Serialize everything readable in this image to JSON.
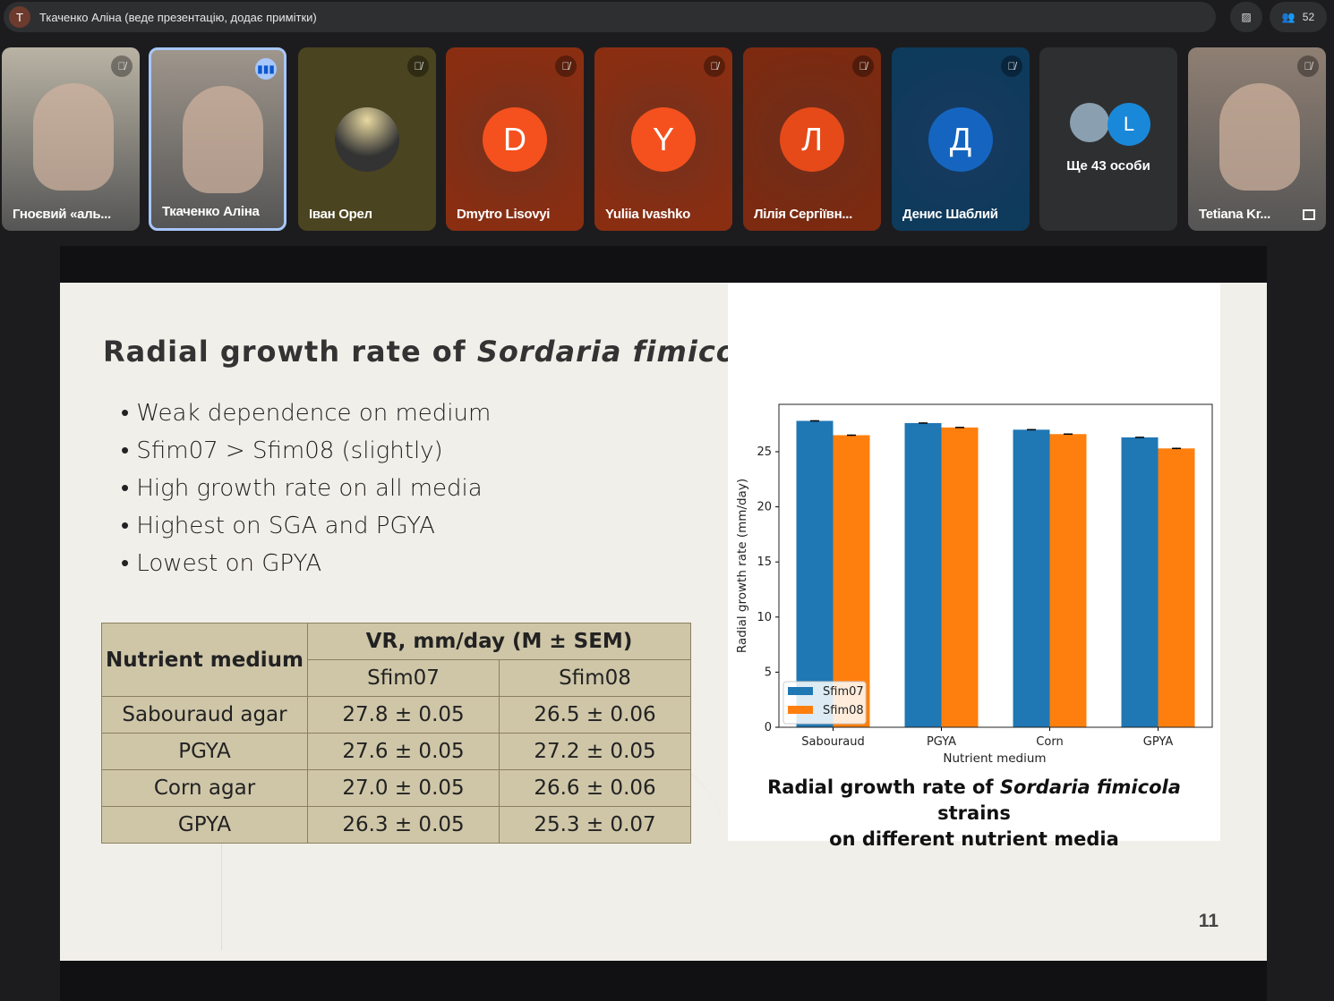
{
  "topbar": {
    "presenter_initial": "T",
    "presenter_label": "Ткаченко Аліна (веде презентацію, додає примітки)",
    "participant_count": "52"
  },
  "tiles": [
    {
      "name": "Гноєвий «аль...",
      "type": "video",
      "bg": "#b9b3a4"
    },
    {
      "name": "Ткаченко Аліна",
      "type": "video",
      "bg": "#9f968c",
      "speaking": true
    },
    {
      "name": "Іван Орел",
      "type": "photo",
      "bg": "#4a4420"
    },
    {
      "name": "Dmytro Lisovyi",
      "initial": "D",
      "bg": "#8a2e12",
      "avatar": "#f4511e"
    },
    {
      "name": "Yuliia Ivashko",
      "initial": "Y",
      "bg": "#8a2e12",
      "avatar": "#f4511e"
    },
    {
      "name": "Лілія Сергіївн...",
      "initial": "Л",
      "bg": "#7c2a10",
      "avatar": "#e64a19"
    },
    {
      "name": "Денис Шаблий",
      "initial": "Д",
      "bg": "#0e3a5c",
      "avatar": "#1565c0"
    },
    {
      "name": "Ще 43 особи",
      "type": "more",
      "bg": "#2e2f31",
      "avatar_initial": "L"
    },
    {
      "name": "Tetiana Kr...",
      "type": "video",
      "bg": "#8f7f73"
    }
  ],
  "slide": {
    "title_plain": "Radial growth rate of ",
    "title_italic": "Sordaria fimicola",
    "bullets": [
      "Weak dependence on medium",
      "Sfim07 > Sfim08 (slightly)",
      "High growth rate on all media",
      "Highest on SGA and PGYA",
      "Lowest on GPYA"
    ],
    "table": {
      "col0": "Nutrient medium",
      "group": "VR, mm/day (M ± SEM)",
      "cols": [
        "Sfim07",
        "Sfim08"
      ],
      "rows": [
        [
          "Sabouraud agar",
          "27.8 ± 0.05",
          "26.5 ± 0.06"
        ],
        [
          "PGYA",
          "27.6 ± 0.05",
          "27.2 ± 0.05"
        ],
        [
          "Corn agar",
          "27.0 ± 0.05",
          "26.6 ± 0.06"
        ],
        [
          "GPYA",
          "26.3 ± 0.05",
          "25.3 ± 0.07"
        ]
      ]
    },
    "caption_1": "Radial growth rate of ",
    "caption_italic": "Sordaria fimicola",
    "caption_2": " strains",
    "caption_line2": "on different nutrient media",
    "page_number": "11"
  },
  "chart_data": {
    "type": "bar",
    "categories": [
      "Sabouraud",
      "PGYA",
      "Corn",
      "GPYA"
    ],
    "series": [
      {
        "name": "Sfim07",
        "color": "#1f77b4",
        "values": [
          27.8,
          27.6,
          27.0,
          26.3
        ],
        "errors": [
          0.05,
          0.05,
          0.05,
          0.05
        ]
      },
      {
        "name": "Sfim08",
        "color": "#ff7f0e",
        "values": [
          26.5,
          27.2,
          26.6,
          25.3
        ],
        "errors": [
          0.06,
          0.05,
          0.06,
          0.07
        ]
      }
    ],
    "xlabel": "Nutrient medium",
    "ylabel": "Radial growth rate (mm/day)",
    "yticks": [
      0,
      5,
      10,
      15,
      20,
      25
    ],
    "ylim": [
      0,
      29.3
    ],
    "legend": "lower-left"
  }
}
